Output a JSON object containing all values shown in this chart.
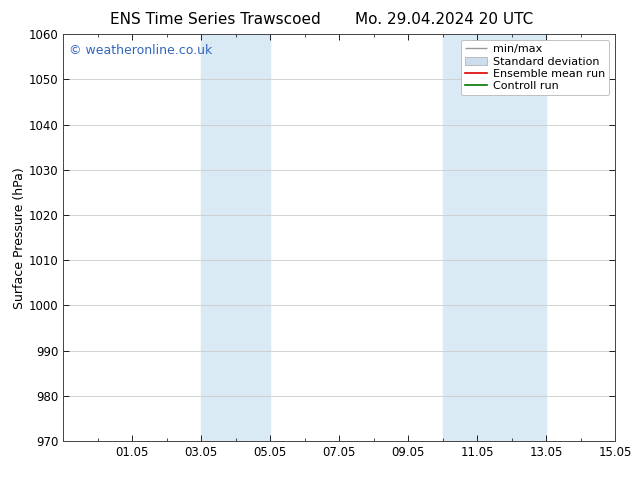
{
  "title_left": "ENS Time Series Trawscoed",
  "title_right": "Mo. 29.04.2024 20 UTC",
  "ylabel": "Surface Pressure (hPa)",
  "ylim": [
    970,
    1060
  ],
  "yticks": [
    970,
    980,
    990,
    1000,
    1010,
    1020,
    1030,
    1040,
    1050,
    1060
  ],
  "xlim": [
    0,
    16
  ],
  "xtick_labels": [
    "01.05",
    "03.05",
    "05.05",
    "07.05",
    "09.05",
    "11.05",
    "13.05",
    "15.05"
  ],
  "xtick_positions": [
    2,
    4,
    6,
    8,
    10,
    12,
    14,
    16
  ],
  "shaded_bands": [
    {
      "x_start": 4.0,
      "x_end": 6.0
    },
    {
      "x_start": 11.0,
      "x_end": 14.0
    }
  ],
  "shaded_color": "#daeaf5",
  "watermark_text": "© weatheronline.co.uk",
  "watermark_color": "#3366bb",
  "legend_items": [
    {
      "label": "min/max",
      "color": "#999999",
      "lw": 1.0,
      "type": "hline"
    },
    {
      "label": "Standard deviation",
      "color": "#ccddee",
      "lw": 8,
      "type": "band"
    },
    {
      "label": "Ensemble mean run",
      "color": "#dd0000",
      "lw": 1.2,
      "type": "line"
    },
    {
      "label": "Controll run",
      "color": "#007700",
      "lw": 1.2,
      "type": "line"
    }
  ],
  "background_color": "#ffffff",
  "grid_color": "#cccccc",
  "title_fontsize": 11,
  "tick_fontsize": 8.5,
  "ylabel_fontsize": 9,
  "watermark_fontsize": 9,
  "legend_fontsize": 8
}
